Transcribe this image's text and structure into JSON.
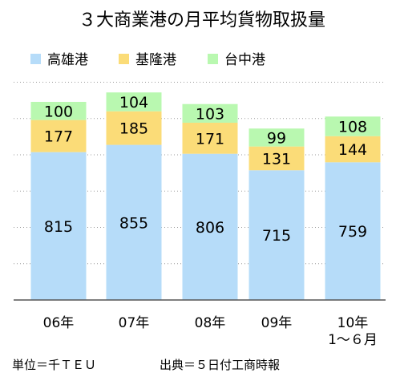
{
  "chart_data": {
    "type": "bar",
    "stacked": true,
    "title": "３大商業港の月平均貨物取扱量",
    "categories": [
      "06年",
      "07年",
      "08年",
      "09年",
      "10年"
    ],
    "category_sublabels": [
      "",
      "",
      "",
      "",
      "1〜６月"
    ],
    "series": [
      {
        "name": "高雄港",
        "values": [
          815,
          855,
          806,
          715,
          759
        ],
        "color": "#b6dcf9"
      },
      {
        "name": "基隆港",
        "values": [
          177,
          185,
          171,
          131,
          144
        ],
        "color": "#fbdc78"
      },
      {
        "name": "台中港",
        "values": [
          100,
          104,
          103,
          99,
          108
        ],
        "color": "#b9f8b0"
      }
    ],
    "ylim": [
      0,
      1200
    ],
    "grid": true,
    "legend": "top-left",
    "xlabel": "",
    "ylabel": ""
  },
  "footer": {
    "unit": "単位＝千ＴＥＵ",
    "source": "出典＝５日付工商時報"
  }
}
